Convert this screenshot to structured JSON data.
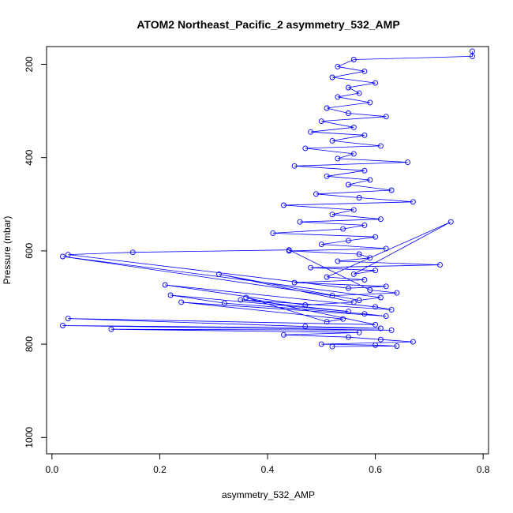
{
  "chart_data": {
    "type": "scatter",
    "title": "ATOM2 Northeast_Pacific_2 asymmetry_532_AMP",
    "xlabel": "asymmetry_532_AMP",
    "ylabel": "Pressure (mbar)",
    "xlim": [
      -0.01,
      0.81
    ],
    "ylim": [
      1035,
      162
    ],
    "y_reversed": true,
    "x_ticks": [
      "0.0",
      "0.2",
      "0.4",
      "0.6",
      "0.8"
    ],
    "y_ticks": [
      "200",
      "400",
      "600",
      "800",
      "1000"
    ],
    "grid": false,
    "legend": "none",
    "series_color": "#0000ff",
    "marker": "open-circle",
    "series": [
      {
        "x": [
          0.78,
          0.78,
          0.56,
          0.53,
          0.58,
          0.52,
          0.6,
          0.55,
          0.57,
          0.53,
          0.59,
          0.51,
          0.55,
          0.62,
          0.5,
          0.56,
          0.48,
          0.58,
          0.52,
          0.61,
          0.47,
          0.56,
          0.53,
          0.66,
          0.45,
          0.58,
          0.51,
          0.59,
          0.55,
          0.63,
          0.49,
          0.57,
          0.67,
          0.43,
          0.56,
          0.52,
          0.61,
          0.46,
          0.58,
          0.54,
          0.41,
          0.6,
          0.55,
          0.5,
          0.62,
          0.44,
          0.57,
          0.59,
          0.53,
          0.72,
          0.48,
          0.6,
          0.56,
          0.74,
          0.51,
          0.58,
          0.45,
          0.62,
          0.55,
          0.03,
          0.15,
          0.44,
          0.59,
          0.64,
          0.52,
          0.02,
          0.61,
          0.57,
          0.31,
          0.56,
          0.47,
          0.21,
          0.6,
          0.63,
          0.35,
          0.55,
          0.22,
          0.32,
          0.58,
          0.62,
          0.24,
          0.54,
          0.51,
          0.36,
          0.6,
          0.03,
          0.47,
          0.61,
          0.02,
          0.63,
          0.11,
          0.57,
          0.43,
          0.55,
          0.61,
          0.67,
          0.5,
          0.6,
          0.64,
          0.52
        ],
        "y": [
          172,
          183,
          190,
          205,
          215,
          228,
          240,
          250,
          262,
          270,
          282,
          294,
          305,
          312,
          322,
          335,
          345,
          352,
          364,
          375,
          380,
          392,
          402,
          410,
          418,
          428,
          440,
          448,
          458,
          470,
          478,
          486,
          495,
          502,
          512,
          522,
          532,
          538,
          545,
          553,
          562,
          570,
          578,
          586,
          595,
          600,
          607,
          615,
          622,
          630,
          636,
          642,
          650,
          538,
          656,
          662,
          668,
          676,
          680,
          608,
          603,
          598,
          684,
          690,
          696,
          612,
          700,
          706,
          650,
          710,
          716,
          673,
          720,
          726,
          705,
          730,
          695,
          712,
          735,
          740,
          710,
          746,
          752,
          700,
          758,
          745,
          762,
          766,
          760,
          770,
          768,
          775,
          780,
          785,
          790,
          795,
          800,
          802,
          804,
          805
        ]
      }
    ]
  }
}
